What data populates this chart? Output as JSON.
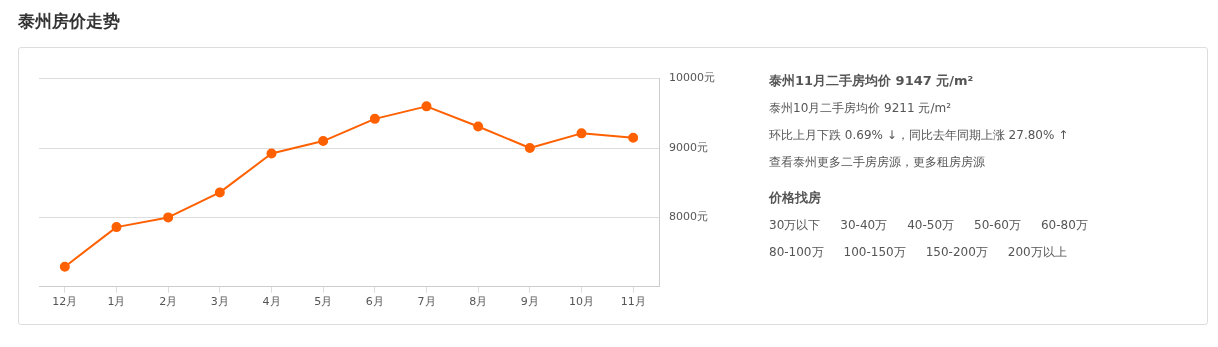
{
  "chart_data": [
    {
      "type": "line",
      "title": "泰州房价走势",
      "categories": [
        "12月",
        "1月",
        "2月",
        "3月",
        "4月",
        "5月",
        "6月",
        "7月",
        "8月",
        "9月",
        "10月",
        "11月"
      ],
      "series": [
        {
          "color": "#ff6000",
          "values": [
            7290,
            7860,
            8000,
            8360,
            8920,
            9100,
            9420,
            9600,
            9310,
            9000,
            9211,
            9147
          ]
        }
      ],
      "ylim": [
        7000,
        10000
      ],
      "yticks": [
        {
          "value": 8000,
          "label": "8000元"
        },
        {
          "value": 9000,
          "label": "9000元"
        },
        {
          "value": 10000,
          "label": "10000元"
        }
      ],
      "grid": "y",
      "marker": "circle",
      "line_style": "solid",
      "legend": false
    },
    {
      "type": "other",
      "title": "泰州11月二手房均价 9147 元/m²",
      "annotations": [
        "泰州10月二手房均价 9211 元/m²",
        "环比上月下跌 0.69% ↓，同比去年同期上涨 27.80% ↑",
        "查看泰州更多二手房房源，更多租房房源"
      ]
    },
    {
      "type": "other",
      "title": "价格找房",
      "annotations": [
        "30万以下",
        "30-40万",
        "40-50万",
        "50-60万",
        "60-80万",
        "80-100万",
        "100-150万",
        "150-200万",
        "200万以上"
      ]
    }
  ]
}
